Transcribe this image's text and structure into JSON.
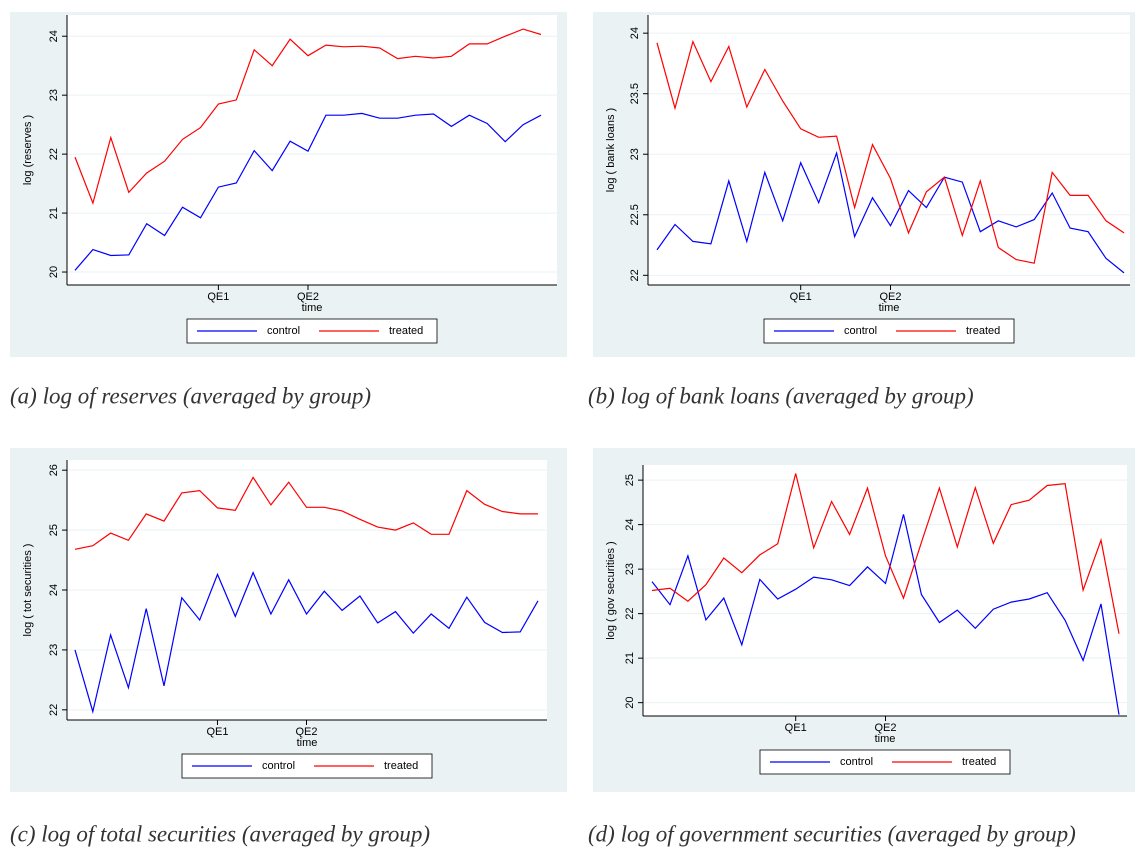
{
  "chart_data": [
    {
      "type": "line",
      "caption": "(a) log of reserves (averaged by group)",
      "y_label": "log (reserves )",
      "x_label": "time",
      "categories": [
        null,
        null,
        null,
        null,
        null,
        null,
        null,
        null,
        "QE1",
        null,
        null,
        null,
        null,
        "QE2",
        null,
        null,
        null,
        null,
        null,
        null,
        null,
        null,
        null,
        null,
        null,
        null,
        null
      ],
      "series": [
        {
          "name": "control",
          "color": "#0000ff",
          "values": [
            20.03,
            20.38,
            20.28,
            20.29,
            20.82,
            20.62,
            21.1,
            20.92,
            21.44,
            21.51,
            22.06,
            21.72,
            22.22,
            22.05,
            22.66,
            22.66,
            22.69,
            22.61,
            22.61,
            22.66,
            22.68,
            22.47,
            22.66,
            22.52,
            22.21,
            22.5,
            22.66
          ]
        },
        {
          "name": "treated",
          "color": "#ff0000",
          "values": [
            21.95,
            21.17,
            22.28,
            21.35,
            21.68,
            21.88,
            22.25,
            22.45,
            22.85,
            22.92,
            23.77,
            23.5,
            23.95,
            23.67,
            23.85,
            23.82,
            23.83,
            23.8,
            23.62,
            23.66,
            23.63,
            23.66,
            23.87,
            23.87,
            24.0,
            24.12,
            24.03
          ]
        }
      ],
      "ylim": [
        19.78,
        24.36
      ],
      "yticks": [
        20,
        21,
        22,
        23,
        24
      ],
      "grid": true,
      "legend": "bottom"
    },
    {
      "type": "line",
      "caption": "(b) log of bank loans (averaged by group)",
      "y_label": "log ( bank loans )",
      "x_label": "time",
      "categories": [
        null,
        null,
        null,
        null,
        null,
        null,
        null,
        null,
        "QE1",
        null,
        null,
        null,
        null,
        "QE2",
        null,
        null,
        null,
        null,
        null,
        null,
        null,
        null,
        null,
        null,
        null,
        null,
        null
      ],
      "series": [
        {
          "name": "control",
          "color": "#0000ff",
          "values": [
            22.21,
            22.42,
            22.28,
            22.26,
            22.78,
            22.28,
            22.85,
            22.45,
            22.93,
            22.6,
            23.01,
            22.32,
            22.64,
            22.41,
            22.7,
            22.56,
            22.81,
            22.77,
            22.36,
            22.45,
            22.4,
            22.46,
            22.68,
            22.39,
            22.36,
            22.14,
            22.02
          ]
        },
        {
          "name": "treated",
          "color": "#ff0000",
          "values": [
            23.92,
            23.38,
            23.93,
            23.6,
            23.89,
            23.39,
            23.7,
            23.44,
            23.21,
            23.14,
            23.15,
            22.56,
            23.08,
            22.8,
            22.35,
            22.69,
            22.81,
            22.33,
            22.78,
            22.23,
            22.13,
            22.1,
            22.85,
            22.66,
            22.66,
            22.45,
            22.35
          ]
        }
      ],
      "ylim": [
        21.92,
        24.15
      ],
      "yticks": [
        22,
        22.5,
        23,
        23.5,
        24
      ],
      "grid": true,
      "legend": "bottom"
    },
    {
      "type": "line",
      "caption": "(c) log of total securities (averaged by group)",
      "y_label": "log ( tot securities )",
      "x_label": "time",
      "categories": [
        null,
        null,
        null,
        null,
        null,
        null,
        null,
        null,
        "QE1",
        null,
        null,
        null,
        null,
        "QE2",
        null,
        null,
        null,
        null,
        null,
        null,
        null,
        null,
        null,
        null,
        null,
        null,
        null
      ],
      "series": [
        {
          "name": "control",
          "color": "#0000ff",
          "values": [
            23.0,
            21.97,
            23.25,
            22.37,
            23.69,
            22.4,
            23.87,
            23.5,
            24.26,
            23.56,
            24.29,
            23.6,
            24.17,
            23.6,
            23.98,
            23.66,
            23.9,
            23.45,
            23.64,
            23.28,
            23.6,
            23.36,
            23.88,
            23.46,
            23.29,
            23.3,
            23.82
          ]
        },
        {
          "name": "treated",
          "color": "#ff0000",
          "values": [
            24.68,
            24.74,
            24.95,
            24.83,
            25.27,
            25.15,
            25.62,
            25.66,
            25.37,
            25.33,
            25.88,
            25.42,
            25.8,
            25.38,
            25.38,
            25.32,
            25.18,
            25.05,
            25.0,
            25.12,
            24.93,
            24.93,
            25.66,
            25.43,
            25.31,
            25.27,
            25.27
          ]
        }
      ],
      "ylim": [
        21.83,
        26.17
      ],
      "yticks": [
        22,
        23,
        24,
        25,
        26
      ],
      "grid": true,
      "legend": "bottom"
    },
    {
      "type": "line",
      "caption": "(d) log of government securities (averaged by group)",
      "y_label": "log ( gov securities )",
      "x_label": "time",
      "categories": [
        null,
        null,
        null,
        null,
        null,
        null,
        null,
        null,
        "QE1",
        null,
        null,
        null,
        null,
        "QE2",
        null,
        null,
        null,
        null,
        null,
        null,
        null,
        null,
        null,
        null,
        null,
        null,
        null
      ],
      "series": [
        {
          "name": "control",
          "color": "#0000ff",
          "values": [
            22.72,
            22.2,
            23.3,
            21.86,
            22.35,
            21.3,
            22.77,
            22.33,
            22.55,
            22.82,
            22.76,
            22.63,
            23.05,
            22.68,
            24.23,
            22.43,
            21.8,
            22.08,
            21.67,
            22.1,
            22.26,
            22.33,
            22.47,
            21.85,
            20.95,
            22.22,
            19.73
          ]
        },
        {
          "name": "treated",
          "color": "#ff0000",
          "values": [
            22.52,
            22.57,
            22.28,
            22.65,
            23.25,
            22.92,
            23.32,
            23.57,
            25.15,
            23.48,
            24.52,
            23.78,
            24.82,
            23.3,
            22.35,
            23.6,
            24.82,
            23.5,
            24.83,
            23.58,
            24.45,
            24.55,
            24.88,
            24.92,
            22.53,
            23.65,
            21.55
          ]
        }
      ],
      "ylim": [
        19.7,
        25.34
      ],
      "yticks": [
        20,
        21,
        22,
        23,
        24,
        25
      ],
      "grid": true,
      "legend": "bottom"
    }
  ]
}
